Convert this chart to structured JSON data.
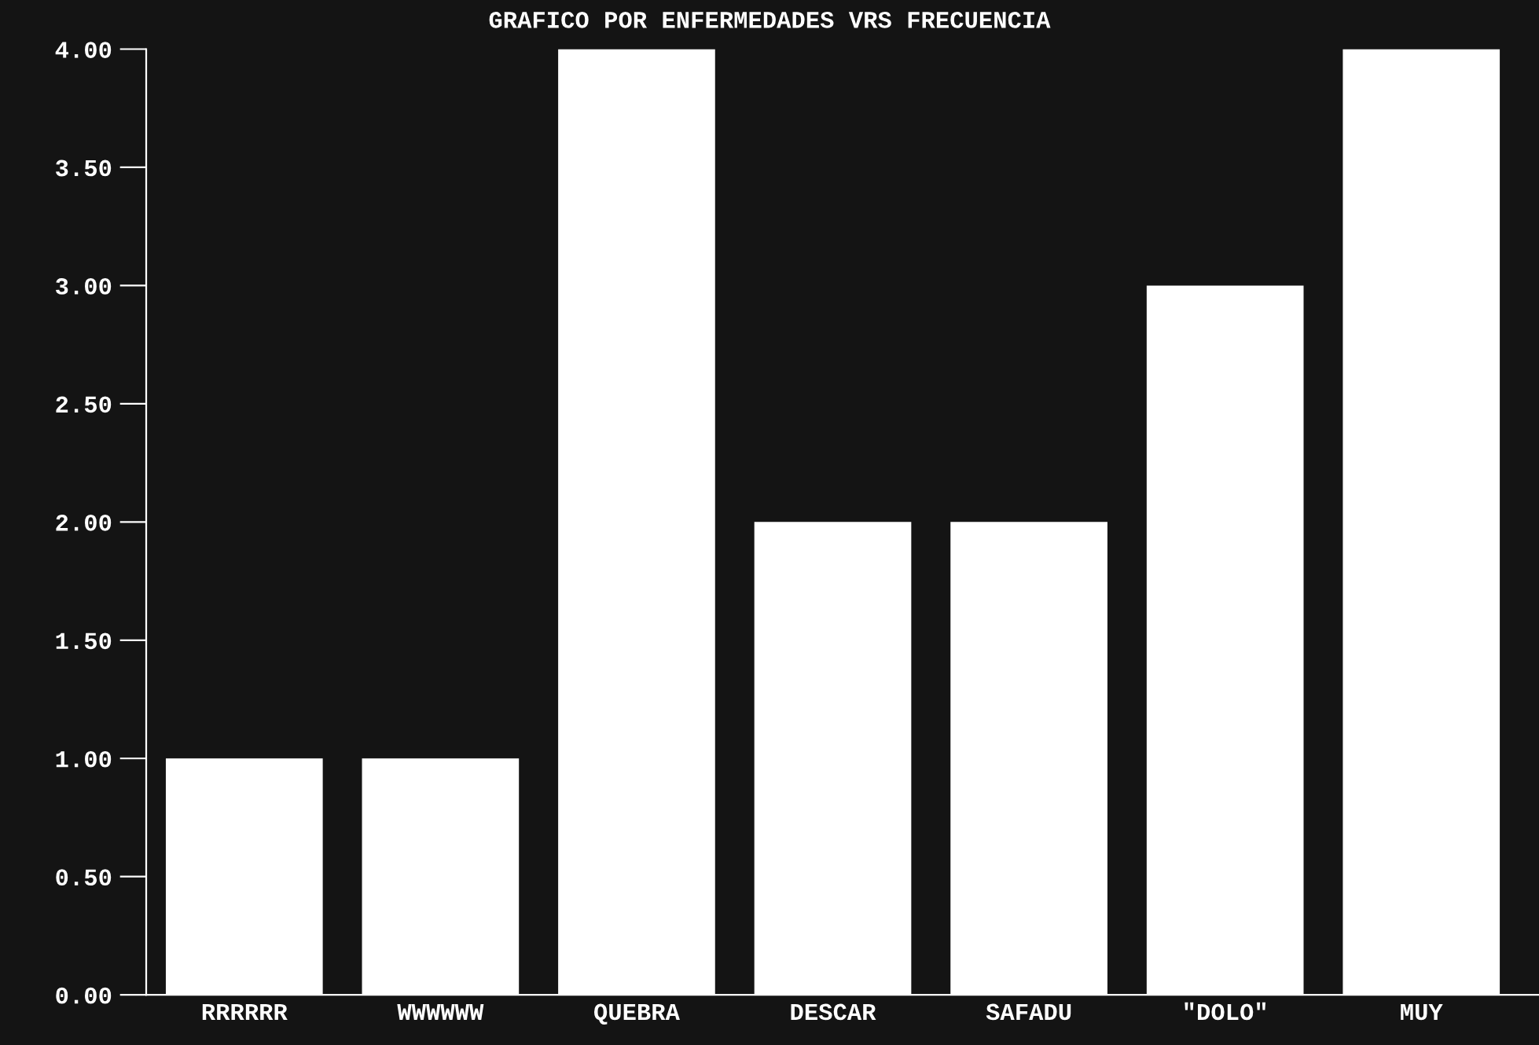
{
  "chart_data": {
    "type": "bar",
    "title": "GRAFICO POR ENFERMEDADES VRS FRECUENCIA",
    "categories": [
      "RRRRRR",
      "WWWWWW",
      "QUEBRA",
      "DESCAR",
      "SAFADU",
      "\"DOLO\"",
      "MUY"
    ],
    "values": [
      1,
      1,
      4,
      2,
      2,
      3,
      4
    ],
    "color": "#ffffff",
    "ylim": [
      0,
      4
    ],
    "yticks": [
      {
        "value": 0,
        "label": "0.00"
      },
      {
        "value": 0.5,
        "label": "0.50"
      },
      {
        "value": 1,
        "label": "1.00"
      },
      {
        "value": 1.5,
        "label": "1.50"
      },
      {
        "value": 2,
        "label": "2.00"
      },
      {
        "value": 2.5,
        "label": "2.50"
      },
      {
        "value": 3,
        "label": "3.00"
      },
      {
        "value": 3.5,
        "label": "3.50"
      },
      {
        "value": 4,
        "label": "4.00"
      }
    ],
    "grid": false
  }
}
